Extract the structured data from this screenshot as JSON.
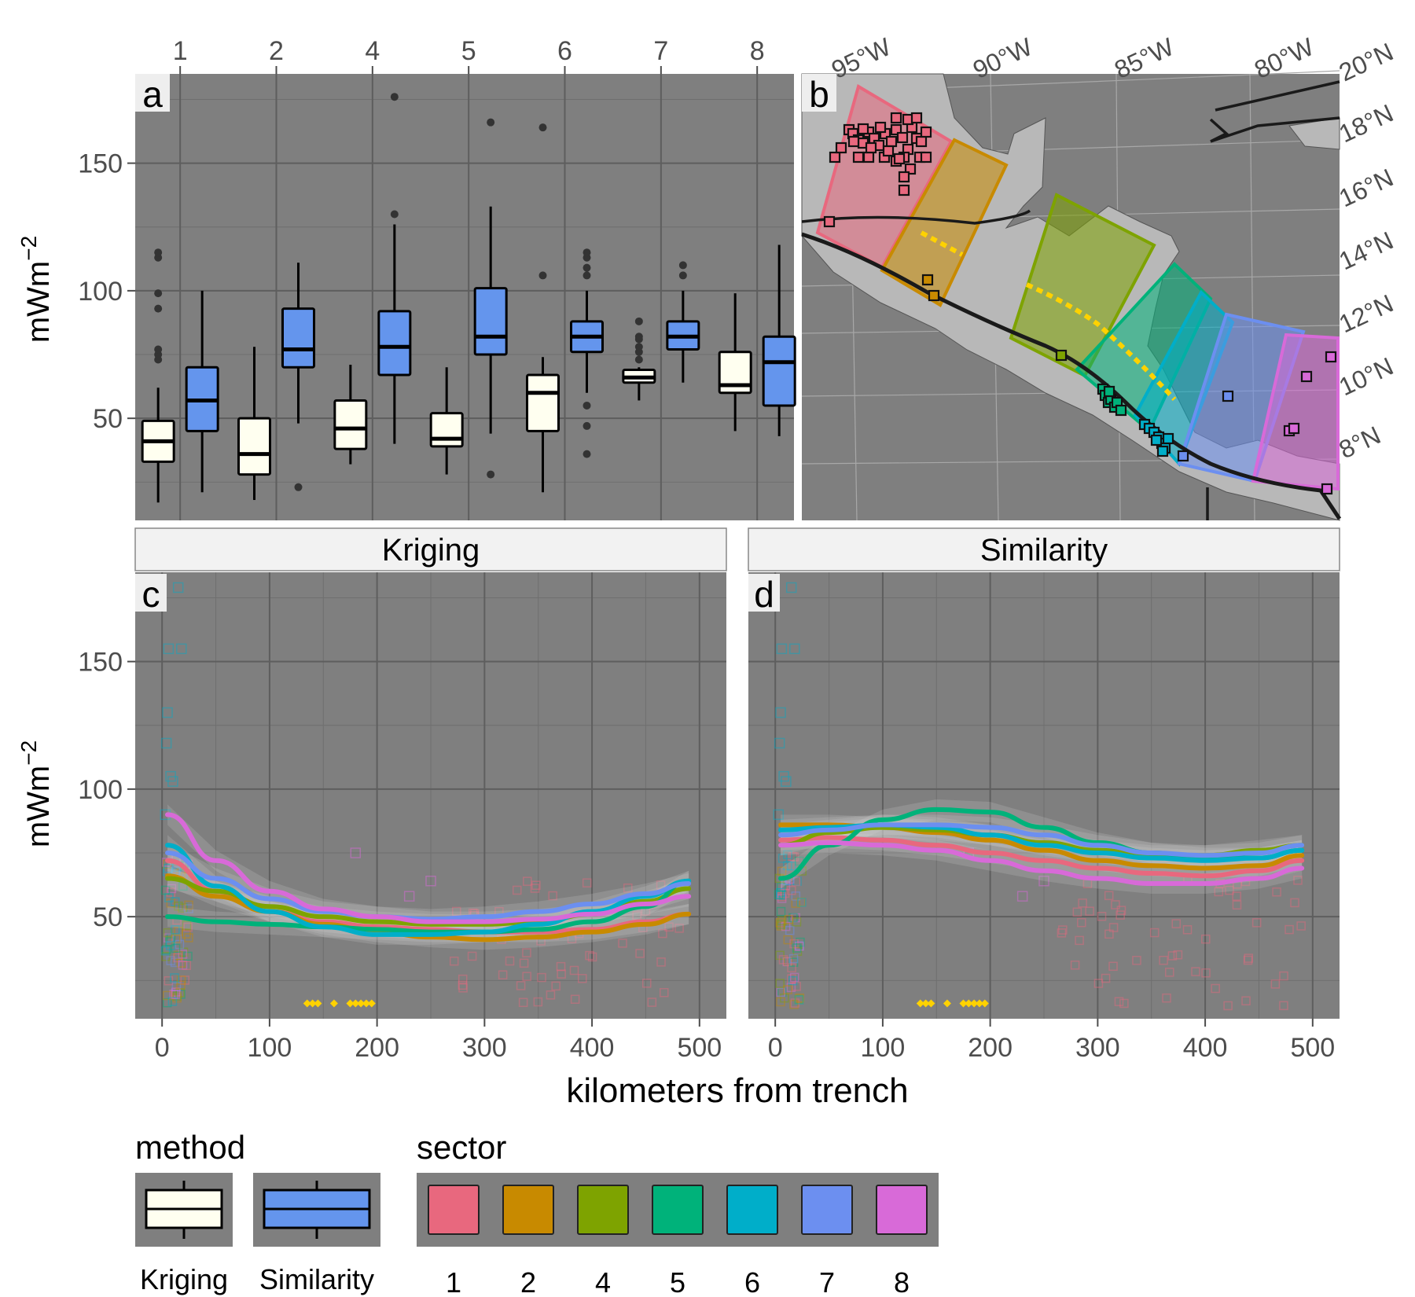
{
  "panel_labels": {
    "a": "a",
    "b": "b",
    "c": "c",
    "d": "d"
  },
  "strips": {
    "left": "Kriging",
    "right": "Similarity"
  },
  "axis_labels": {
    "y_a": "mWm",
    "y_exp": "−2",
    "y_c": "mWm",
    "x_bottom": "kilometers from trench"
  },
  "map": {
    "lon_labels": [
      "95°W",
      "90°W",
      "85°W",
      "80°W"
    ],
    "lat_labels": [
      "20°N",
      "18°N",
      "16°N",
      "14°N",
      "12°N",
      "10°N",
      "8°N"
    ]
  },
  "legend": {
    "method_title": "method",
    "sector_title": "sector",
    "method_items": [
      {
        "label": "Kriging",
        "color": "#fffff0"
      },
      {
        "label": "Similarity",
        "color": "#6495ed"
      }
    ],
    "sector_items": [
      {
        "label": "1",
        "color": "#e8687e"
      },
      {
        "label": "2",
        "color": "#c88a00"
      },
      {
        "label": "4",
        "color": "#7ea300"
      },
      {
        "label": "5",
        "color": "#00b27a"
      },
      {
        "label": "6",
        "color": "#00aec9"
      },
      {
        "label": "7",
        "color": "#6c8ff0"
      },
      {
        "label": "8",
        "color": "#d86ad8"
      }
    ]
  },
  "chart_data": [
    {
      "type": "box",
      "panel": "a",
      "categories": [
        "1",
        "2",
        "4",
        "5",
        "6",
        "7",
        "8"
      ],
      "ylabel": "mWm⁻²",
      "ylim": [
        10,
        185
      ],
      "yticks": [
        50,
        100,
        150
      ],
      "grid": true,
      "series": [
        {
          "name": "Kriging",
          "color": "#fffff0",
          "boxes": [
            {
              "min": 17,
              "q1": 33,
              "median": 41,
              "q3": 49,
              "max": 62,
              "outliers": [
                73,
                75,
                77,
                93,
                99,
                113,
                115
              ]
            },
            {
              "min": 18,
              "q1": 28,
              "median": 36,
              "q3": 50,
              "max": 78,
              "outliers": []
            },
            {
              "min": 32,
              "q1": 38,
              "median": 46,
              "q3": 57,
              "max": 71,
              "outliers": []
            },
            {
              "min": 28,
              "q1": 39,
              "median": 42,
              "q3": 52,
              "max": 70,
              "outliers": []
            },
            {
              "min": 21,
              "q1": 45,
              "median": 60,
              "q3": 67,
              "max": 74,
              "outliers": [
                106,
                164
              ]
            },
            {
              "min": 57,
              "q1": 64,
              "median": 66,
              "q3": 69,
              "max": 70,
              "outliers": [
                73,
                76,
                78,
                81,
                82,
                88
              ]
            },
            {
              "min": 45,
              "q1": 60,
              "median": 63,
              "q3": 76,
              "max": 99,
              "outliers": []
            }
          ]
        },
        {
          "name": "Similarity",
          "color": "#6495ed",
          "boxes": [
            {
              "min": 21,
              "q1": 45,
              "median": 57,
              "q3": 70,
              "max": 100,
              "outliers": []
            },
            {
              "min": 48,
              "q1": 70,
              "median": 77,
              "q3": 93,
              "max": 111,
              "outliers": [
                23
              ]
            },
            {
              "min": 40,
              "q1": 67,
              "median": 78,
              "q3": 92,
              "max": 126,
              "outliers": [
                130,
                176
              ]
            },
            {
              "min": 44,
              "q1": 75,
              "median": 82,
              "q3": 101,
              "max": 133,
              "outliers": [
                28,
                166
              ]
            },
            {
              "min": 60,
              "q1": 76,
              "median": 82,
              "q3": 88,
              "max": 100,
              "outliers": [
                36,
                47,
                55,
                106,
                109,
                113,
                115
              ]
            },
            {
              "min": 64,
              "q1": 77,
              "median": 82,
              "q3": 88,
              "max": 100,
              "outliers": [
                106,
                110
              ]
            },
            {
              "min": 43,
              "q1": 55,
              "median": 72,
              "q3": 82,
              "max": 118,
              "outliers": []
            }
          ]
        }
      ]
    },
    {
      "type": "line",
      "panel": "c",
      "title": "Kriging",
      "xlabel": "kilometers from trench",
      "ylabel": "mWm⁻²",
      "xlim": [
        -25,
        525
      ],
      "ylim": [
        10,
        185
      ],
      "xticks": [
        0,
        100,
        200,
        300,
        400,
        500
      ],
      "yticks": [
        50,
        100,
        150
      ],
      "grid": true,
      "x": [
        5,
        50,
        100,
        150,
        200,
        250,
        300,
        350,
        400,
        450,
        490
      ],
      "series": [
        {
          "name": "1",
          "color": "#e8687e",
          "values": [
            72,
            60,
            52,
            48,
            46,
            45,
            44,
            44,
            45,
            48,
            51
          ]
        },
        {
          "name": "2",
          "color": "#c88a00",
          "values": [
            66,
            58,
            52,
            47,
            44,
            42,
            41,
            42,
            44,
            47,
            51
          ]
        },
        {
          "name": "4",
          "color": "#7ea300",
          "values": [
            65,
            60,
            54,
            50,
            48,
            47,
            47,
            48,
            51,
            56,
            61
          ]
        },
        {
          "name": "5",
          "color": "#00b27a",
          "values": [
            50,
            48,
            47,
            46,
            45,
            44,
            44,
            45,
            48,
            54,
            64
          ]
        },
        {
          "name": "6",
          "color": "#00aec9",
          "values": [
            78,
            62,
            52,
            46,
            43,
            43,
            44,
            47,
            52,
            58,
            64
          ]
        },
        {
          "name": "7",
          "color": "#6c8ff0",
          "values": [
            75,
            65,
            57,
            52,
            50,
            49,
            50,
            52,
            55,
            59,
            63
          ]
        },
        {
          "name": "8",
          "color": "#d86ad8",
          "values": [
            90,
            72,
            60,
            53,
            50,
            48,
            48,
            49,
            51,
            55,
            58
          ]
        }
      ],
      "slab_depth_markers_x": [
        135,
        140,
        145,
        160,
        175,
        180,
        185,
        190,
        195
      ]
    },
    {
      "type": "line",
      "panel": "d",
      "title": "Similarity",
      "xlabel": "kilometers from trench",
      "ylabel": "mWm⁻²",
      "xlim": [
        -25,
        525
      ],
      "ylim": [
        10,
        185
      ],
      "xticks": [
        0,
        100,
        200,
        300,
        400,
        500
      ],
      "yticks": [
        50,
        100,
        150
      ],
      "grid": true,
      "x": [
        5,
        50,
        100,
        150,
        200,
        250,
        300,
        350,
        400,
        450,
        490
      ],
      "series": [
        {
          "name": "1",
          "color": "#e8687e",
          "values": [
            80,
            81,
            80,
            78,
            75,
            72,
            69,
            67,
            66,
            68,
            72
          ]
        },
        {
          "name": "2",
          "color": "#c88a00",
          "values": [
            86,
            86,
            85,
            83,
            80,
            76,
            72,
            70,
            69,
            70,
            74
          ]
        },
        {
          "name": "4",
          "color": "#7ea300",
          "values": [
            78,
            83,
            85,
            84,
            82,
            79,
            76,
            74,
            74,
            76,
            78
          ]
        },
        {
          "name": "5",
          "color": "#00b27a",
          "values": [
            65,
            78,
            88,
            92,
            91,
            85,
            79,
            75,
            73,
            73,
            76
          ]
        },
        {
          "name": "6",
          "color": "#00aec9",
          "values": [
            84,
            85,
            86,
            85,
            82,
            78,
            75,
            73,
            72,
            73,
            76
          ]
        },
        {
          "name": "7",
          "color": "#6c8ff0",
          "values": [
            82,
            84,
            86,
            86,
            85,
            82,
            78,
            75,
            74,
            75,
            78
          ]
        },
        {
          "name": "8",
          "color": "#d86ad8",
          "values": [
            78,
            79,
            78,
            76,
            72,
            68,
            65,
            63,
            63,
            65,
            69
          ]
        }
      ],
      "slab_depth_markers_x": [
        135,
        140,
        145,
        160,
        175,
        180,
        185,
        190,
        195
      ]
    }
  ]
}
